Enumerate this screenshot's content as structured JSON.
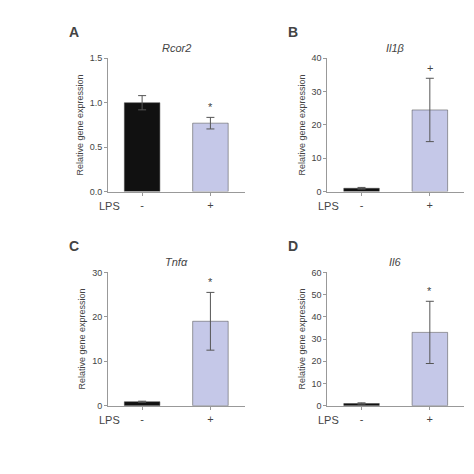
{
  "chart_data": [
    {
      "type": "bar",
      "title": "Rcor2",
      "panel_label": "A",
      "xlabel": "LPS",
      "ylabel": "Relative gene expression",
      "categories": [
        "-",
        "+"
      ],
      "values": [
        1.0,
        0.77
      ],
      "yerr": [
        0.08,
        0.065
      ],
      "colors": [
        "#111111",
        "#c5c8e8"
      ],
      "annotations": [
        {
          "x": "+",
          "text": "*"
        }
      ],
      "ylim": [
        0,
        1.5
      ],
      "yticks": [
        {
          "value": 0,
          "label": "0.0"
        },
        0.5,
        {
          "value": 1,
          "label": "1.0"
        },
        1.5
      ],
      "grid": false
    },
    {
      "type": "bar",
      "title": "Il1β",
      "panel_label": "B",
      "xlabel": "LPS",
      "ylabel": "Relative gene expression",
      "categories": [
        "-",
        "+"
      ],
      "values": [
        1.0,
        24.5
      ],
      "yerr": [
        0.25,
        9.5
      ],
      "colors": [
        "#111111",
        "#c5c8e8"
      ],
      "annotations": [
        {
          "x": "+",
          "text": "+"
        }
      ],
      "ylim": [
        0,
        40
      ],
      "yticks": [
        0,
        10,
        20,
        30,
        40
      ],
      "grid": false
    },
    {
      "type": "bar",
      "title": "Tnfα",
      "panel_label": "C",
      "xlabel": "LPS",
      "ylabel": "Relative gene expression",
      "categories": [
        "-",
        "+"
      ],
      "values": [
        0.9,
        19.0
      ],
      "yerr": [
        0.12,
        6.5
      ],
      "colors": [
        "#111111",
        "#c5c8e8"
      ],
      "annotations": [
        {
          "x": "+",
          "text": "*"
        }
      ],
      "ylim": [
        0,
        30
      ],
      "yticks": [
        0,
        10,
        20,
        30
      ],
      "grid": false
    },
    {
      "type": "bar",
      "title": "Il6",
      "panel_label": "D",
      "xlabel": "LPS",
      "ylabel": "Relative gene expression",
      "categories": [
        "-",
        "+"
      ],
      "values": [
        1.0,
        33.0
      ],
      "yerr": [
        0.3,
        14.0
      ],
      "colors": [
        "#111111",
        "#c5c8e8"
      ],
      "annotations": [
        {
          "x": "+",
          "text": "*"
        }
      ],
      "ylim": [
        0,
        60
      ],
      "yticks": [
        0,
        10,
        20,
        30,
        40,
        50,
        60
      ],
      "grid": false
    }
  ]
}
